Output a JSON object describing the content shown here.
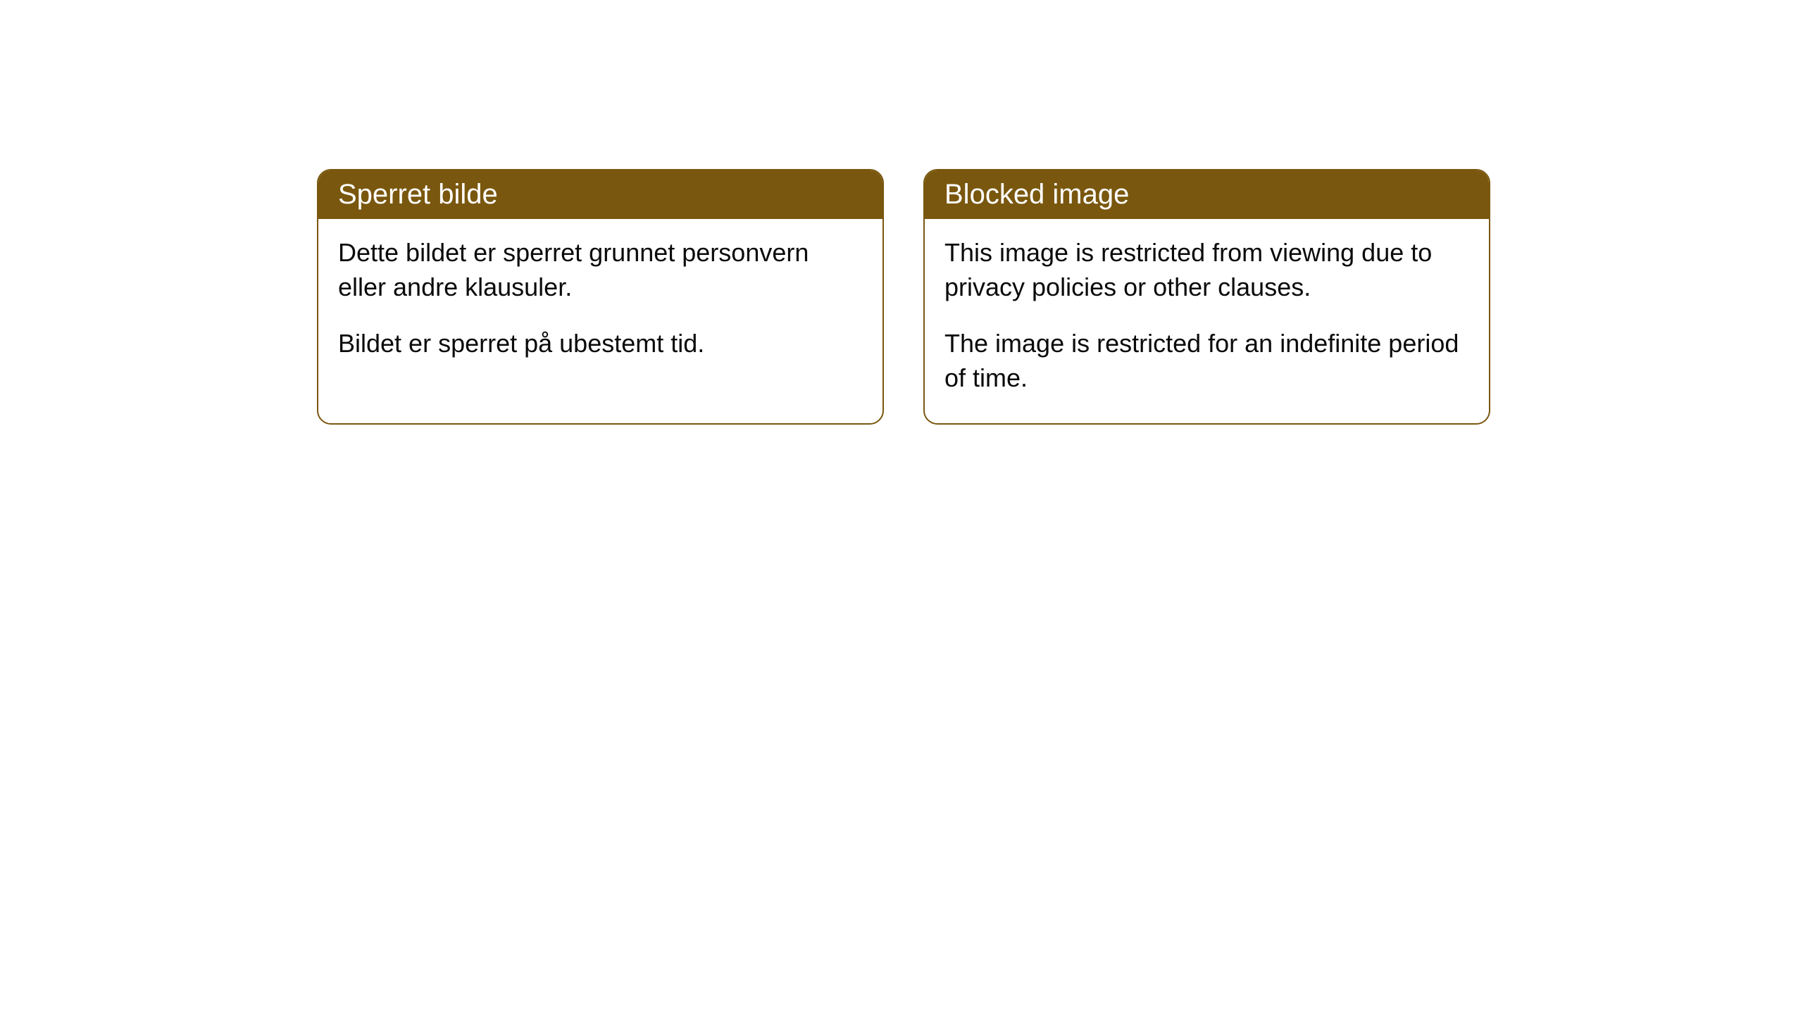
{
  "cards": [
    {
      "title": "Sperret bilde",
      "paragraph1": "Dette bildet er sperret grunnet personvern eller andre klausuler.",
      "paragraph2": "Bildet er sperret på ubestemt tid."
    },
    {
      "title": "Blocked image",
      "paragraph1": "This image is restricted from viewing due to privacy policies or other clauses.",
      "paragraph2": "The image is restricted for an indefinite period of time."
    }
  ],
  "style": {
    "header_bg_color": "#79570e",
    "header_text_color": "#ffffff",
    "body_text_color": "#0a0a0a",
    "card_border_color": "#79570e",
    "card_bg_color": "#ffffff",
    "page_bg_color": "#ffffff",
    "header_fontsize": 40,
    "body_fontsize": 36,
    "border_radius": 20
  }
}
